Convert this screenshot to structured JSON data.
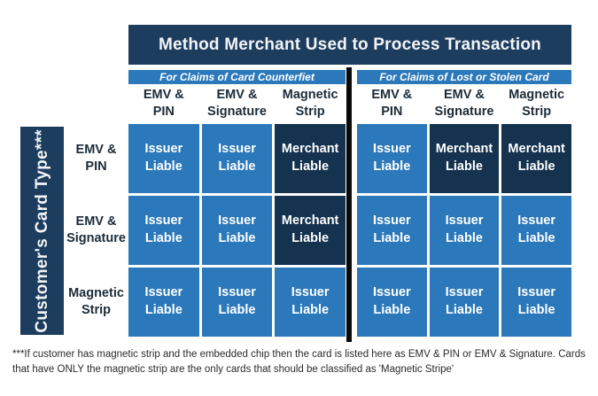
{
  "header": {
    "title": "Method Merchant Used to Process Transaction"
  },
  "side": {
    "label": "Customer's Card Type***"
  },
  "row_labels": [
    "EMV &\nPIN",
    "EMV &\nSignature",
    "Magnetic\nStrip"
  ],
  "panels": [
    {
      "claim_label": "For Claims of Card Counterfiet",
      "columns": [
        "EMV &\nPIN",
        "EMV &\nSignature",
        "Magnetic\nStrip"
      ],
      "cells": [
        [
          "Issuer\nLiable",
          "Issuer\nLiable",
          "Merchant\nLiable"
        ],
        [
          "Issuer\nLiable",
          "Issuer\nLiable",
          "Merchant\nLiable"
        ],
        [
          "Issuer\nLiable",
          "Issuer\nLiable",
          "Issuer\nLiable"
        ]
      ]
    },
    {
      "claim_label": "For Claims of Lost or Stolen Card",
      "columns": [
        "EMV &\nPIN",
        "EMV &\nSignature",
        "Magnetic\nStrip"
      ],
      "cells": [
        [
          "Issuer\nLiable",
          "Merchant\nLiable",
          "Merchant\nLiable"
        ],
        [
          "Issuer\nLiable",
          "Issuer\nLiable",
          "Issuer\nLiable"
        ],
        [
          "Issuer\nLiable",
          "Issuer\nLiable",
          "Issuer\nLiable"
        ]
      ]
    }
  ],
  "footnote": "***If customer has magnetic strip and the embedded chip then the card is listed here as EMV & PIN or EMV & Signature. Cards\nthat have ONLY the magnetic strip are the only cards that should be classified as 'Magnetic Stripe'",
  "colors": {
    "navy": "#1d3d5e",
    "dark_cell": "#15324f",
    "blue": "#2b78ba",
    "divider": "#0a0a0a",
    "header_text": "#1c2b38"
  },
  "chart_data": {
    "type": "table",
    "title": "Method Merchant Used to Process Transaction",
    "column_groups": [
      "For Claims of Card Counterfiet",
      "For Claims of Lost or Stolen Card"
    ],
    "columns_per_group": [
      "EMV & PIN",
      "EMV & Signature",
      "Magnetic Strip"
    ],
    "row_axis_label": "Customer's Card Type***",
    "rows": [
      "EMV & PIN",
      "EMV & Signature",
      "Magnetic Strip"
    ],
    "values_counterfeit": [
      [
        "Issuer Liable",
        "Issuer Liable",
        "Merchant Liable"
      ],
      [
        "Issuer Liable",
        "Issuer Liable",
        "Merchant Liable"
      ],
      [
        "Issuer Liable",
        "Issuer Liable",
        "Issuer Liable"
      ]
    ],
    "values_lost_or_stolen": [
      [
        "Issuer Liable",
        "Merchant Liable",
        "Merchant Liable"
      ],
      [
        "Issuer Liable",
        "Issuer Liable",
        "Issuer Liable"
      ],
      [
        "Issuer Liable",
        "Issuer Liable",
        "Issuer Liable"
      ]
    ]
  }
}
